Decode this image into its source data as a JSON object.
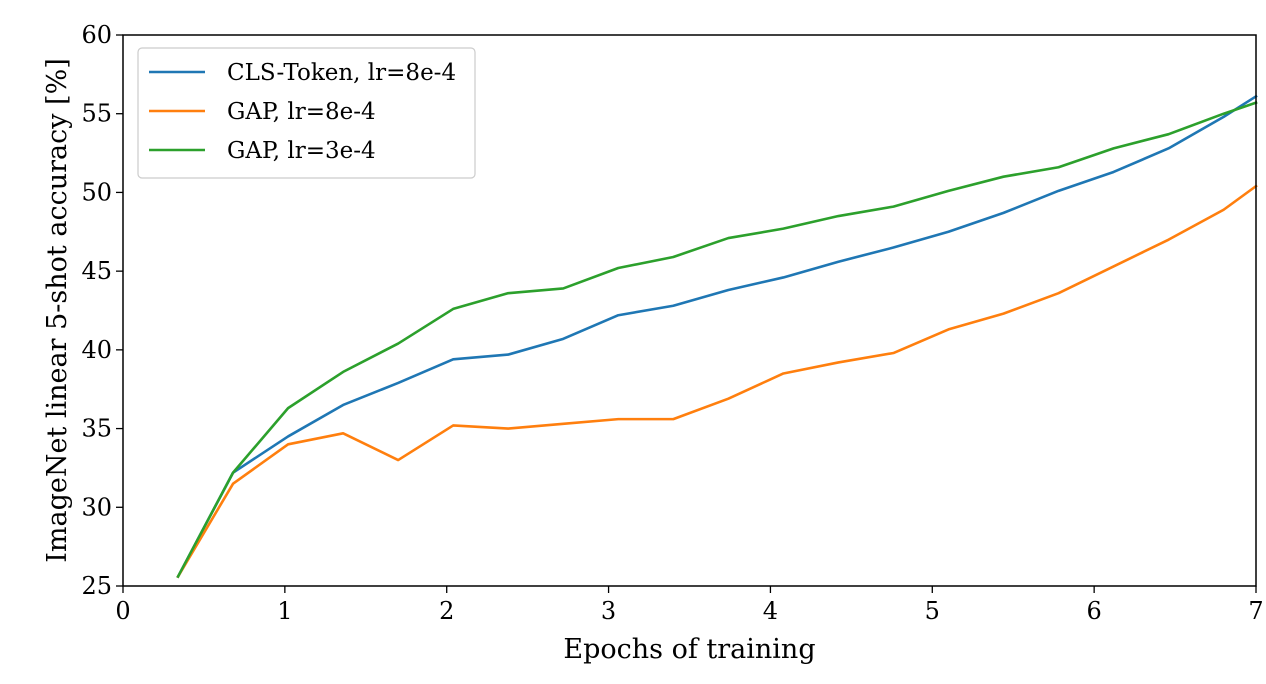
{
  "chart_data": {
    "type": "line",
    "xlabel": "Epochs of training",
    "ylabel": "ImageNet linear 5-shot accuracy [%]",
    "xlim": [
      0,
      7
    ],
    "ylim": [
      25,
      60
    ],
    "xticks": [
      "0",
      "1",
      "2",
      "3",
      "4",
      "5",
      "6",
      "7"
    ],
    "yticks": [
      "25",
      "30",
      "35",
      "40",
      "45",
      "50",
      "55",
      "60"
    ],
    "grid": false,
    "legend_position": "top-left",
    "series": [
      {
        "name": "CLS-Token, lr=8e-4",
        "color": "#1f77b4",
        "x": [
          0.34,
          0.68,
          1.02,
          1.36,
          1.7,
          2.04,
          2.38,
          2.72,
          3.06,
          3.4,
          3.74,
          4.08,
          4.42,
          4.76,
          5.1,
          5.44,
          5.78,
          6.12,
          6.46,
          6.8,
          7.0
        ],
        "y": [
          25.6,
          32.2,
          34.5,
          36.5,
          37.9,
          39.4,
          39.7,
          40.7,
          42.2,
          42.8,
          43.8,
          44.6,
          45.6,
          46.5,
          47.5,
          48.7,
          50.1,
          51.3,
          52.8,
          54.8,
          56.1
        ]
      },
      {
        "name": "GAP, lr=8e-4",
        "color": "#ff7f0e",
        "x": [
          0.34,
          0.68,
          1.02,
          1.36,
          1.7,
          2.04,
          2.38,
          2.72,
          3.06,
          3.4,
          3.74,
          4.08,
          4.42,
          4.76,
          5.1,
          5.44,
          5.78,
          6.12,
          6.46,
          6.8,
          7.0
        ],
        "y": [
          25.6,
          31.5,
          34.0,
          34.7,
          33.0,
          35.2,
          35.0,
          35.3,
          35.6,
          35.6,
          36.9,
          38.5,
          39.2,
          39.8,
          41.3,
          42.3,
          43.6,
          45.3,
          47.0,
          48.9,
          50.4
        ]
      },
      {
        "name": "GAP, lr=3e-4",
        "color": "#2ca02c",
        "x": [
          0.34,
          0.68,
          1.02,
          1.36,
          1.7,
          2.04,
          2.38,
          2.72,
          3.06,
          3.4,
          3.74,
          4.08,
          4.42,
          4.76,
          5.1,
          5.44,
          5.78,
          6.12,
          6.46,
          6.8,
          7.0
        ],
        "y": [
          25.6,
          32.2,
          36.3,
          38.6,
          40.4,
          42.6,
          43.6,
          43.9,
          45.2,
          45.9,
          47.1,
          47.7,
          48.5,
          49.1,
          50.1,
          51.0,
          51.6,
          52.8,
          53.7,
          55.0,
          55.7
        ]
      }
    ]
  }
}
